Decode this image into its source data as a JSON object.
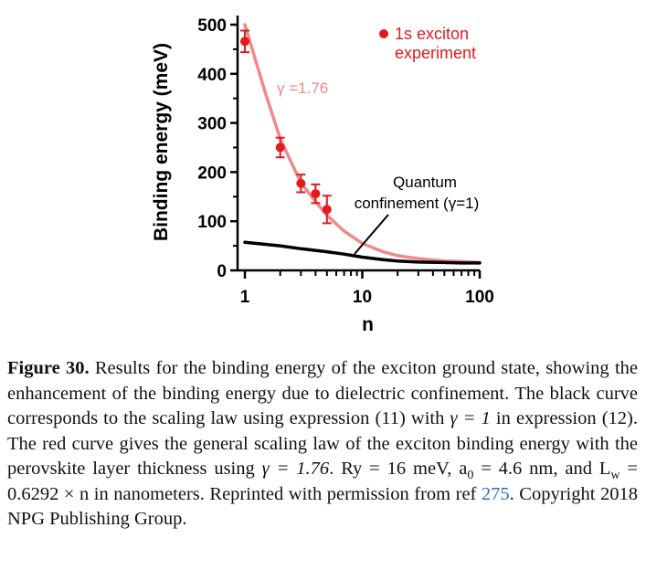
{
  "chart_data": {
    "type": "line",
    "xlabel": "n",
    "ylabel": "Binding energy (meV)",
    "x_scale": "log",
    "xlim": [
      1,
      100
    ],
    "ylim": [
      0,
      500
    ],
    "x_ticks": [
      {
        "value": 1,
        "label": "1"
      },
      {
        "value": 10,
        "label": "10"
      },
      {
        "value": 100,
        "label": "100"
      }
    ],
    "y_ticks": [
      {
        "value": 0,
        "label": "0"
      },
      {
        "value": 100,
        "label": "100"
      },
      {
        "value": 200,
        "label": "200"
      },
      {
        "value": 300,
        "label": "300"
      },
      {
        "value": 400,
        "label": "400"
      },
      {
        "value": 500,
        "label": "500"
      }
    ],
    "series": [
      {
        "name": "1s exciton experiment",
        "kind": "scatter",
        "color": "#e31a1c",
        "points": [
          {
            "x": 1,
            "y": 466,
            "err": 22
          },
          {
            "x": 2,
            "y": 250,
            "err": 20
          },
          {
            "x": 3,
            "y": 177,
            "err": 18
          },
          {
            "x": 4,
            "y": 156,
            "err": 19
          },
          {
            "x": 5,
            "y": 124,
            "err": 28
          }
        ]
      },
      {
        "name": "γ =1.76",
        "kind": "line",
        "color": "#f08a8a",
        "x": [
          1,
          1.5,
          2,
          3,
          4,
          5,
          7,
          10,
          15,
          20,
          30,
          50,
          70,
          100
        ],
        "y": [
          500,
          360,
          268,
          178,
          140,
          112,
          80,
          55,
          38,
          30,
          24,
          19,
          18,
          16
        ]
      },
      {
        "name": "Quantum confinement (γ=1)",
        "kind": "line",
        "color": "#000000",
        "x": [
          1,
          2,
          3,
          5,
          7,
          10,
          15,
          20,
          30,
          50,
          70,
          100
        ],
        "y": [
          57,
          50,
          44,
          38,
          33,
          27,
          22,
          19,
          17,
          16,
          15,
          15
        ]
      }
    ],
    "annotations": [
      {
        "text": "γ =1.76",
        "color": "#f08a8a"
      },
      {
        "text": "Quantum",
        "color": "#000000"
      },
      {
        "text": "confinement (γ=1)",
        "color": "#000000"
      }
    ],
    "legend": {
      "position": "top-right",
      "entries": [
        "1s exciton",
        "experiment"
      ]
    }
  },
  "caption": {
    "label": "Figure 30.",
    "text_1": " Results for the binding energy of the exciton ground state, showing the enhancement of the binding energy due to dielectric confinement. The black curve corresponds to the scaling law using expression (11) with ",
    "gamma_1": "γ = 1",
    "text_2": " in expression (12). The red curve gives the general scaling law of the exciton binding energy with the perovskite layer thickness using ",
    "gamma_2": "γ = 1.76",
    "text_3": ". Ry = 16 meV, a",
    "sub_0": "0",
    "text_4": " = 4.6 nm, and L",
    "sub_w": "w",
    "text_5": " = 0.6292 × n in nanometers. Reprinted with permission from ref ",
    "ref": "275",
    "text_6": ". Copyright 2018 NPG Publishing Group."
  }
}
